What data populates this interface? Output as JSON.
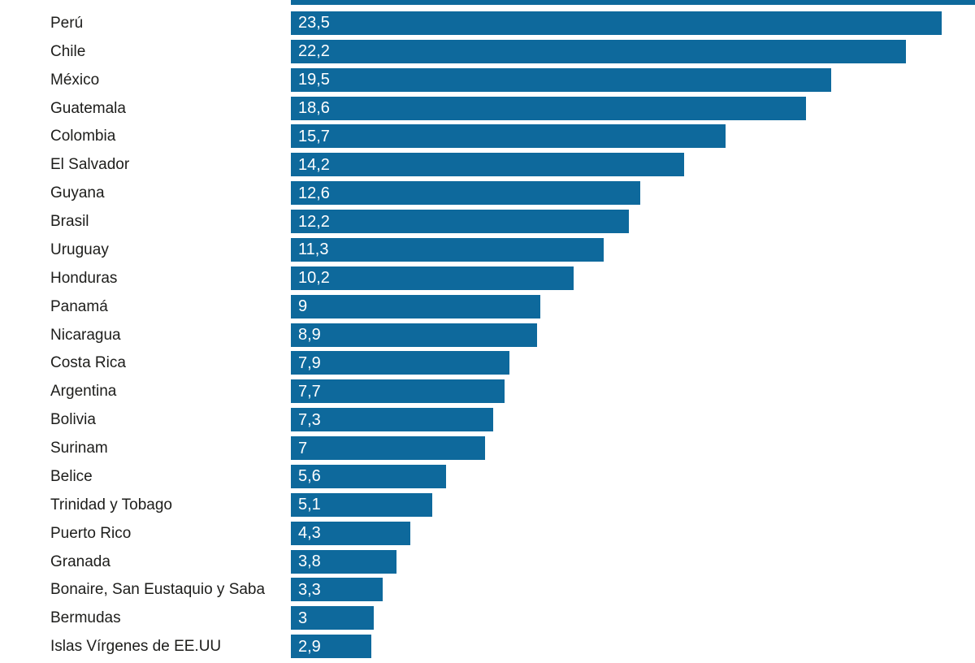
{
  "chart_data": {
    "type": "bar",
    "orientation": "horizontal",
    "title": "",
    "xlabel": "",
    "ylabel": "",
    "grid": false,
    "legend": false,
    "xlim": [
      0,
      24.7
    ],
    "decimal_separator": ",",
    "bar_color": "#0e699c",
    "category_color": "#1d1d1b",
    "value_text_color": "#ffffff",
    "top_clipped_bar": true,
    "categories": [
      "Perú",
      "Chile",
      "México",
      "Guatemala",
      "Colombia",
      "El Salvador",
      "Guyana",
      "Brasil",
      "Uruguay",
      "Honduras",
      "Panamá",
      "Nicaragua",
      "Costa Rica",
      "Argentina",
      "Bolivia",
      "Surinam",
      "Belice",
      "Trinidad y Tobago",
      "Puerto Rico",
      "Granada",
      "Bonaire, San Eustaquio y Saba",
      "Bermudas",
      "Islas Vírgenes de EE.UU"
    ],
    "values": [
      23.5,
      22.2,
      19.5,
      18.6,
      15.7,
      14.2,
      12.6,
      12.2,
      11.3,
      10.2,
      9,
      8.9,
      7.9,
      7.7,
      7.3,
      7,
      5.6,
      5.1,
      4.3,
      3.8,
      3.3,
      3,
      2.9
    ],
    "value_labels": [
      "23,5",
      "22,2",
      "19,5",
      "18,6",
      "15,7",
      "14,2",
      "12,6",
      "12,2",
      "11,3",
      "10,2",
      "9",
      "8,9",
      "7,9",
      "7,7",
      "7,3",
      "7",
      "5,6",
      "5,1",
      "4,3",
      "3,8",
      "3,3",
      "3",
      "2,9"
    ]
  }
}
